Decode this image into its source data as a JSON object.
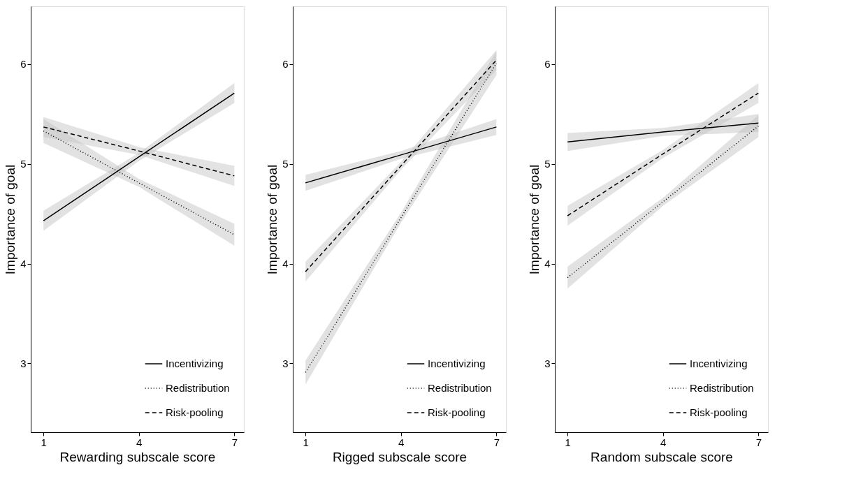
{
  "chart_data": [
    {
      "type": "line",
      "xlabel": "Rewarding subscale score",
      "ylabel": "Importance of goal",
      "x": [
        1,
        4,
        7
      ],
      "xlim": [
        0.6,
        7.3
      ],
      "ylim": [
        2.31,
        6.58
      ],
      "xticks": [
        1,
        4,
        7
      ],
      "yticks": [
        3,
        4,
        5,
        6
      ],
      "grid": false,
      "legend": "bottom right",
      "series": [
        {
          "name": "Incentivizing",
          "color": "#000000",
          "line_style": "solid",
          "values": [
            4.43,
            5.07,
            5.71
          ],
          "lower": [
            4.33,
            5.03,
            5.61
          ],
          "upper": [
            4.53,
            5.11,
            5.81
          ]
        },
        {
          "name": "Redistribution",
          "color": "#000000",
          "line_style": "dotted",
          "values": [
            5.33,
            4.81,
            4.29
          ],
          "lower": [
            5.21,
            4.77,
            4.18
          ],
          "upper": [
            5.45,
            4.85,
            4.4
          ]
        },
        {
          "name": "Risk-pooling",
          "color": "#000000",
          "line_style": "dashed",
          "values": [
            5.37,
            5.13,
            4.88
          ],
          "lower": [
            5.27,
            5.09,
            4.78
          ],
          "upper": [
            5.47,
            5.17,
            4.98
          ]
        }
      ]
    },
    {
      "type": "line",
      "xlabel": "Rigged subscale score",
      "ylabel": "Importance of goal",
      "x": [
        1,
        4,
        7
      ],
      "xlim": [
        0.6,
        7.3
      ],
      "ylim": [
        2.31,
        6.58
      ],
      "xticks": [
        1,
        4,
        7
      ],
      "yticks": [
        3,
        4,
        5,
        6
      ],
      "grid": false,
      "legend": "bottom right",
      "series": [
        {
          "name": "Incentivizing",
          "color": "#000000",
          "line_style": "solid",
          "values": [
            4.81,
            5.09,
            5.37
          ],
          "lower": [
            4.73,
            5.05,
            5.29
          ],
          "upper": [
            4.89,
            5.13,
            5.45
          ]
        },
        {
          "name": "Redistribution",
          "color": "#000000",
          "line_style": "dotted",
          "values": [
            2.91,
            4.46,
            6.01
          ],
          "lower": [
            2.79,
            4.41,
            5.89
          ],
          "upper": [
            3.03,
            4.51,
            6.13
          ]
        },
        {
          "name": "Risk-pooling",
          "color": "#000000",
          "line_style": "dashed",
          "values": [
            3.92,
            4.98,
            6.04
          ],
          "lower": [
            3.82,
            4.94,
            5.94
          ],
          "upper": [
            4.02,
            5.02,
            6.14
          ]
        }
      ]
    },
    {
      "type": "line",
      "xlabel": "Random subscale score",
      "ylabel": "Importance of goal",
      "x": [
        1,
        4,
        7
      ],
      "xlim": [
        0.6,
        7.3
      ],
      "ylim": [
        2.31,
        6.58
      ],
      "xticks": [
        1,
        4,
        7
      ],
      "yticks": [
        3,
        4,
        5,
        6
      ],
      "grid": false,
      "legend": "bottom right",
      "series": [
        {
          "name": "Incentivizing",
          "color": "#000000",
          "line_style": "solid",
          "values": [
            5.22,
            5.32,
            5.41
          ],
          "lower": [
            5.13,
            5.28,
            5.32
          ],
          "upper": [
            5.31,
            5.36,
            5.5
          ]
        },
        {
          "name": "Redistribution",
          "color": "#000000",
          "line_style": "dotted",
          "values": [
            3.86,
            4.62,
            5.38
          ],
          "lower": [
            3.75,
            4.58,
            5.27
          ],
          "upper": [
            3.97,
            4.66,
            5.49
          ]
        },
        {
          "name": "Risk-pooling",
          "color": "#000000",
          "line_style": "dashed",
          "values": [
            4.48,
            5.1,
            5.71
          ],
          "lower": [
            4.38,
            5.06,
            5.61
          ],
          "upper": [
            4.58,
            5.14,
            5.81
          ]
        }
      ]
    }
  ]
}
